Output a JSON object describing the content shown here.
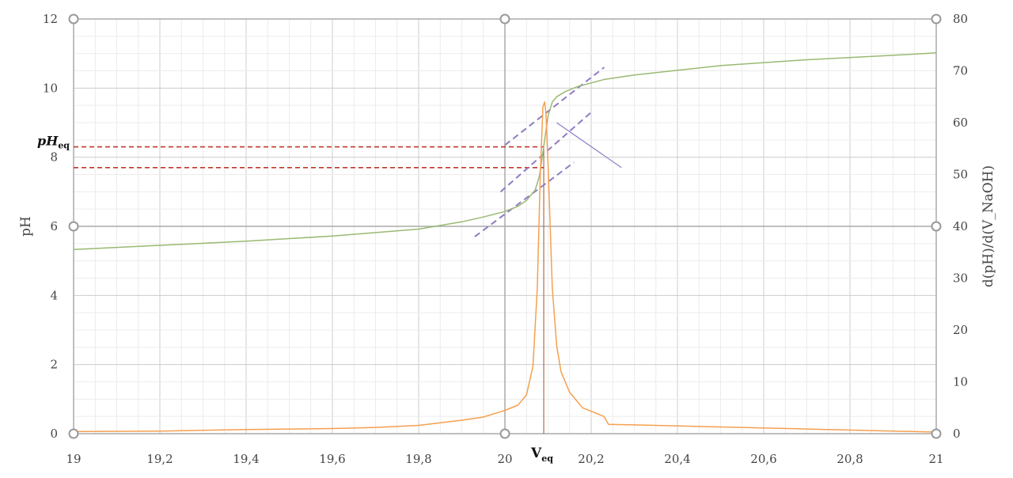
{
  "chart_data": {
    "type": "line",
    "title": "",
    "xlabel": "",
    "ylabel": "pH",
    "y2label": "d(pH)/d(V_NaOH)",
    "xlim": [
      19,
      21
    ],
    "ylim": [
      0,
      12
    ],
    "y2lim": [
      0,
      80
    ],
    "grid": true,
    "x_ticks": [
      "19",
      "19,2",
      "19,4",
      "19,6",
      "19,8",
      "20",
      "20,2",
      "20,4",
      "20,6",
      "20,8",
      "21"
    ],
    "y_ticks": [
      "0",
      "2",
      "4",
      "6",
      "8",
      "10",
      "12"
    ],
    "y2_ticks": [
      "0",
      "10",
      "20",
      "30",
      "40",
      "50",
      "60",
      "70",
      "80"
    ],
    "colors": {
      "ph_curve": "#9ab973",
      "derivative_curve": "#f5a04f",
      "tangent_lines": "#8e7cc3",
      "ph_markers": "#c0392b",
      "veq_line": "#a0522d",
      "grid_major": "#cccccc",
      "grid_minor": "#ececec",
      "axis": "#aaaaaa"
    },
    "series": [
      {
        "axis": "left",
        "x": [
          19.0,
          19.2,
          19.4,
          19.6,
          19.8,
          19.9,
          19.95,
          20.0,
          20.03,
          20.05,
          20.07,
          20.08,
          20.09,
          20.1,
          20.11,
          20.12,
          20.14,
          20.17,
          20.2,
          20.23,
          20.3,
          20.5,
          20.7,
          20.9,
          21.0
        ],
        "values": [
          5.33,
          5.45,
          5.57,
          5.72,
          5.92,
          6.13,
          6.27,
          6.43,
          6.58,
          6.75,
          7.05,
          7.45,
          8.3,
          9.2,
          9.6,
          9.75,
          9.9,
          10.05,
          10.15,
          10.25,
          10.38,
          10.65,
          10.82,
          10.95,
          11.02
        ]
      },
      {
        "axis": "right",
        "x": [
          19.0,
          19.2,
          19.4,
          19.6,
          19.7,
          19.8,
          19.9,
          19.95,
          20.0,
          20.03,
          20.05,
          20.065,
          20.075,
          20.082,
          20.088,
          20.092,
          20.095,
          20.1,
          20.105,
          20.11,
          20.12,
          20.13,
          20.15,
          20.18,
          20.21,
          20.23,
          20.24,
          20.3,
          20.5,
          20.7,
          20.9,
          21.0
        ],
        "values": [
          0.4,
          0.5,
          0.8,
          1.0,
          1.2,
          1.6,
          2.6,
          3.2,
          4.5,
          5.5,
          7.5,
          13,
          28,
          50,
          63,
          64,
          62,
          52,
          40,
          28,
          17,
          12,
          8,
          5,
          4,
          3.3,
          1.8,
          1.7,
          1.3,
          0.9,
          0.5,
          0.3
        ]
      }
    ],
    "annotations": {
      "ph_eq_label_main": "pH",
      "ph_eq_label_sub": "eq",
      "veq_label_main": "V",
      "veq_label_sub": "eq",
      "veq_x": 20.09,
      "ph_eq_value": 8.3,
      "ph_second_value": 7.7,
      "tangent_x_start": [
        19.93,
        19.99,
        20.0
      ],
      "tangent_x_end": [
        20.16,
        20.2,
        20.23
      ],
      "tangent_y_start": [
        5.7,
        7.0,
        8.35
      ],
      "tangent_y_end": [
        7.85,
        9.3,
        10.6
      ],
      "cross_line_x": [
        20.12,
        20.27
      ],
      "cross_line_y": [
        9.0,
        7.7
      ]
    }
  }
}
